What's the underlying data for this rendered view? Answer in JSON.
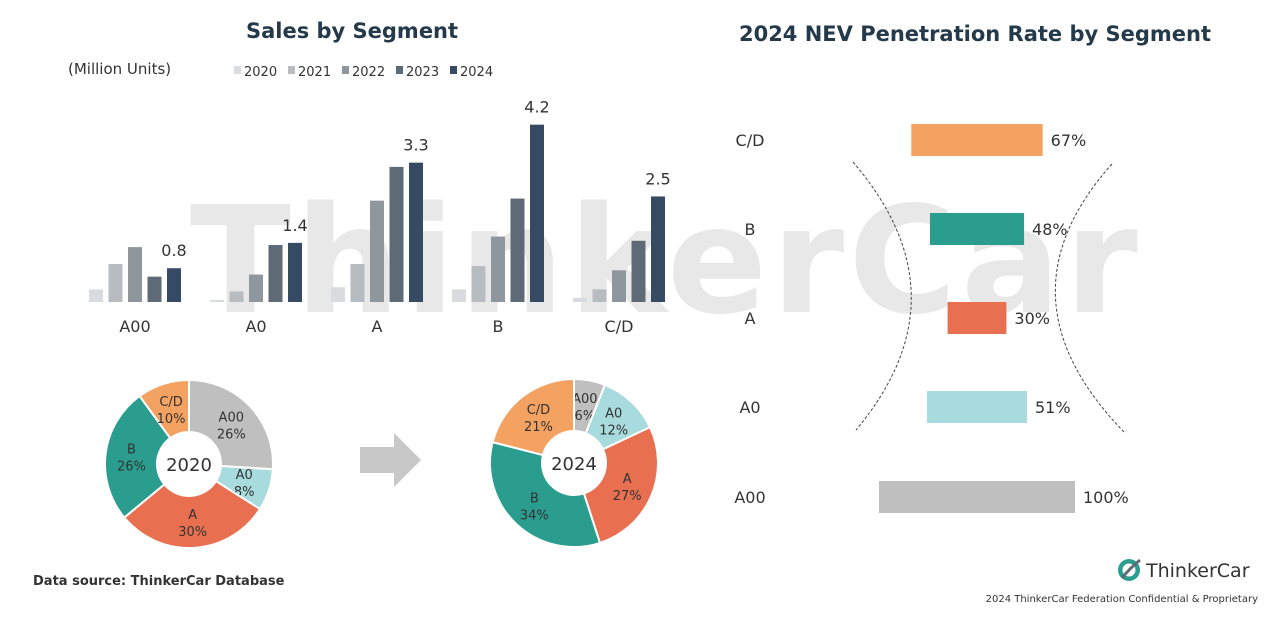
{
  "colors": {
    "title": "#243a4a",
    "year": [
      "#d9dcdf",
      "#b7bcc1",
      "#8e969e",
      "#5f6a77",
      "#374a64"
    ],
    "segment": {
      "A00": "#bfbfbf",
      "A0": "#a8dbdd",
      "A": "#e86f50",
      "B": "#2a9d8f",
      "C/D": "#f4a261"
    }
  },
  "watermark": "ThinkerCar",
  "brand": {
    "name": "ThinkerCar",
    "logo_icon": "swirl-logo-icon"
  },
  "footer": {
    "source": "Data source: ThinkerCar Database",
    "confidential": "2024 ThinkerCar Federation Confidential & Proprietary"
  },
  "arrow_icon": "right-arrow-icon",
  "chart_data": [
    {
      "type": "bar",
      "title": "Sales by Segment",
      "ylabel": "(Million Units)",
      "categories": [
        "A00",
        "A0",
        "A",
        "B",
        "C/D"
      ],
      "ylim": [
        0,
        4.5
      ],
      "legend": "top",
      "grid": false,
      "series": [
        {
          "name": "2020",
          "values": [
            0.3,
            0.05,
            0.35,
            0.3,
            0.1
          ]
        },
        {
          "name": "2021",
          "values": [
            0.9,
            0.25,
            0.9,
            0.85,
            0.3
          ]
        },
        {
          "name": "2022",
          "values": [
            1.3,
            0.65,
            2.4,
            1.55,
            0.75
          ]
        },
        {
          "name": "2023",
          "values": [
            0.6,
            1.35,
            3.2,
            2.45,
            1.45
          ]
        },
        {
          "name": "2024",
          "values": [
            0.8,
            1.4,
            3.3,
            4.2,
            2.5
          ]
        }
      ],
      "data_labels": [
        {
          "series": "2024",
          "category": "A00",
          "text": "0.8"
        },
        {
          "series": "2024",
          "category": "A0",
          "text": "1.4"
        },
        {
          "series": "2024",
          "category": "A",
          "text": "3.3"
        },
        {
          "series": "2024",
          "category": "B",
          "text": "4.2"
        },
        {
          "series": "2024",
          "category": "C/D",
          "text": "2.5"
        }
      ]
    },
    {
      "type": "pie",
      "variant": "donut",
      "center_label": "2020",
      "slices": [
        {
          "label": "A00",
          "value": 26,
          "text": "26%"
        },
        {
          "label": "A0",
          "value": 8,
          "text": "8%"
        },
        {
          "label": "A",
          "value": 30,
          "text": "30%"
        },
        {
          "label": "B",
          "value": 26,
          "text": "26%"
        },
        {
          "label": "C/D",
          "value": 10,
          "text": "10%"
        }
      ]
    },
    {
      "type": "pie",
      "variant": "donut",
      "center_label": "2024",
      "slices": [
        {
          "label": "A00",
          "value": 6,
          "text": "6%"
        },
        {
          "label": "A0",
          "value": 12,
          "text": "12%"
        },
        {
          "label": "A",
          "value": 27,
          "text": "27%"
        },
        {
          "label": "B",
          "value": 34,
          "text": "34%"
        },
        {
          "label": "C/D",
          "value": 21,
          "text": "21%"
        }
      ]
    },
    {
      "type": "bar",
      "orientation": "horizontal",
      "title": "2024 NEV Penetration Rate by Segment",
      "categories": [
        "C/D",
        "B",
        "A",
        "A0",
        "A00"
      ],
      "values": [
        67,
        48,
        30,
        51,
        100
      ],
      "value_labels": [
        "67%",
        "48%",
        "30%",
        "51%",
        "100%"
      ],
      "xlim": [
        0,
        100
      ],
      "grid": false
    }
  ]
}
